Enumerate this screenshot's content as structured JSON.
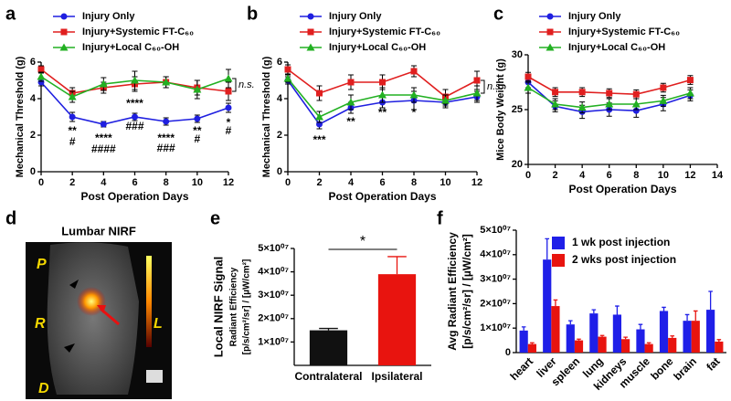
{
  "panel_labels": [
    "a",
    "b",
    "c",
    "d",
    "e",
    "f"
  ],
  "image_panel": {
    "title": "Lumbar NIRF",
    "orientation_labels": [
      "P",
      "R",
      "L",
      "D"
    ]
  },
  "chart_data": [
    {
      "type": "line",
      "x_label": "Post Operation Days",
      "y_label": "Mechanical Threshold (g)",
      "x": [
        0,
        2,
        4,
        6,
        8,
        10,
        12
      ],
      "xlim": [
        0,
        12
      ],
      "xticks": [
        0,
        2,
        4,
        6,
        8,
        10,
        12
      ],
      "ylim": [
        0,
        6
      ],
      "yticks": [
        0,
        2,
        4,
        6
      ],
      "series": [
        {
          "name": "Injury Only",
          "color": "#1f1fe0",
          "marker": "circle",
          "values": [
            4.9,
            3.0,
            2.6,
            3.0,
            2.75,
            2.9,
            3.5
          ],
          "errors": [
            0.2,
            0.25,
            0.15,
            0.2,
            0.2,
            0.2,
            0.25
          ]
        },
        {
          "name": "Injury+Systemic FT-C₆₀",
          "color": "#e01f1f",
          "marker": "square",
          "values": [
            5.6,
            4.3,
            4.6,
            4.8,
            4.9,
            4.6,
            4.4
          ],
          "errors": [
            0.2,
            0.3,
            0.3,
            0.4,
            0.3,
            0.4,
            0.5
          ]
        },
        {
          "name": "Injury+Local C₆₀-OH",
          "color": "#22b022",
          "marker": "triangle",
          "values": [
            5.2,
            4.1,
            4.8,
            5.0,
            4.9,
            4.5,
            5.1
          ],
          "errors": [
            0.25,
            0.3,
            0.35,
            0.5,
            0.3,
            0.5,
            0.5
          ]
        }
      ],
      "annotations": [
        {
          "text": "**",
          "x": 2,
          "y": 2.2
        },
        {
          "text": "#",
          "x": 2,
          "y": 1.6
        },
        {
          "text": "****",
          "x": 4,
          "y": 1.8
        },
        {
          "text": "####",
          "x": 4,
          "y": 1.2
        },
        {
          "text": "****",
          "x": 6,
          "y": 3.7
        },
        {
          "text": "###",
          "x": 6,
          "y": 2.45
        },
        {
          "text": "****",
          "x": 8,
          "y": 1.8
        },
        {
          "text": "###",
          "x": 8,
          "y": 1.25
        },
        {
          "text": "**",
          "x": 10,
          "y": 2.2
        },
        {
          "text": "#",
          "x": 10,
          "y": 1.75
        },
        {
          "text": "*",
          "x": 12,
          "y": 2.65
        },
        {
          "text": "#",
          "x": 12,
          "y": 2.2
        }
      ],
      "bracket_label": "n.s."
    },
    {
      "type": "line",
      "x_label": "Post Operation Days",
      "y_label": "Mechanical Threshold (g)",
      "x": [
        0,
        2,
        4,
        6,
        8,
        10,
        12
      ],
      "xlim": [
        0,
        12
      ],
      "xticks": [
        0,
        2,
        4,
        6,
        8,
        10,
        12
      ],
      "ylim": [
        0,
        6
      ],
      "yticks": [
        0,
        2,
        4,
        6
      ],
      "series": [
        {
          "name": "Injury Only",
          "color": "#1f1fe0",
          "marker": "circle",
          "values": [
            5.0,
            2.6,
            3.5,
            3.8,
            3.9,
            3.8,
            4.1
          ],
          "errors": [
            0.2,
            0.25,
            0.3,
            0.3,
            0.5,
            0.3,
            0.3
          ]
        },
        {
          "name": "Injury+Systemic FT-C₆₀",
          "color": "#e01f1f",
          "marker": "square",
          "values": [
            5.6,
            4.3,
            4.9,
            4.9,
            5.5,
            4.1,
            5.0
          ],
          "errors": [
            0.25,
            0.4,
            0.4,
            0.4,
            0.3,
            0.4,
            0.5
          ]
        },
        {
          "name": "Injury+Local C₆₀-OH",
          "color": "#22b022",
          "marker": "triangle",
          "values": [
            5.1,
            3.0,
            3.8,
            4.2,
            4.2,
            3.9,
            4.3
          ],
          "errors": [
            0.2,
            0.3,
            0.4,
            0.4,
            0.4,
            0.3,
            0.4
          ]
        }
      ],
      "annotations": [
        {
          "text": "***",
          "x": 2,
          "y": 1.7
        },
        {
          "text": "**",
          "x": 4,
          "y": 2.7
        },
        {
          "text": "**",
          "x": 6,
          "y": 3.2
        },
        {
          "text": "*",
          "x": 8,
          "y": 3.2
        }
      ],
      "bracket_label": "n.s."
    },
    {
      "type": "line",
      "x_label": "Post Operation Days",
      "y_label": "Mice Body Weight (g)",
      "x": [
        0,
        2,
        4,
        6,
        8,
        10,
        12
      ],
      "xlim": [
        0,
        14
      ],
      "xticks": [
        0,
        2,
        4,
        6,
        8,
        10,
        12,
        14
      ],
      "ylim": [
        20,
        30
      ],
      "yticks": [
        20,
        25,
        30
      ],
      "series": [
        {
          "name": "Injury Only",
          "color": "#1f1fe0",
          "marker": "circle",
          "values": [
            27.5,
            25.3,
            24.8,
            25.0,
            24.9,
            25.5,
            26.3
          ],
          "errors": [
            0.5,
            0.5,
            0.6,
            0.6,
            0.6,
            0.6,
            0.5
          ]
        },
        {
          "name": "Injury+Systemic FT-C₆₀",
          "color": "#e01f1f",
          "marker": "square",
          "values": [
            28.0,
            26.6,
            26.6,
            26.5,
            26.4,
            27.0,
            27.7
          ],
          "errors": [
            0.4,
            0.4,
            0.4,
            0.4,
            0.4,
            0.4,
            0.4
          ]
        },
        {
          "name": "Injury+Local C₆₀-OH",
          "color": "#22b022",
          "marker": "triangle",
          "values": [
            27.0,
            25.5,
            25.2,
            25.5,
            25.5,
            25.8,
            26.5
          ],
          "errors": [
            0.5,
            0.5,
            0.5,
            0.5,
            0.5,
            0.5,
            0.5
          ]
        }
      ]
    },
    {
      "type": "bar",
      "y_label": "Local NIRF Signal",
      "y_sublabel": [
        "Radiant Efficiency",
        "[p/s/cm²/sr] / [µW/cm²]"
      ],
      "categories": [
        "Contralateral",
        "Ipsilateral"
      ],
      "values": [
        15000000,
        39000000
      ],
      "errors": [
        800000,
        7500000
      ],
      "colors": [
        "#111111",
        "#e8140f"
      ],
      "ylim": [
        0,
        50000000
      ],
      "yticks": [
        {
          "value": 10000000,
          "label": "1×10⁰⁷"
        },
        {
          "value": 20000000,
          "label": "2×10⁰⁷"
        },
        {
          "value": 30000000,
          "label": "3×10⁰⁷"
        },
        {
          "value": 40000000,
          "label": "4×10⁰⁷"
        },
        {
          "value": 50000000,
          "label": "5×10⁰⁷"
        }
      ],
      "significance": "*"
    },
    {
      "type": "bar",
      "y_label": "Avg Radiant Efficiency",
      "y_sublabel": [
        "[p/s/cm²/sr] / [µW/cm²]"
      ],
      "categories": [
        "heart",
        "liver",
        "spleen",
        "lung",
        "kidneys",
        "muscle",
        "bone",
        "brain",
        "fat"
      ],
      "series": [
        {
          "name": "1 wk post injection",
          "color": "#1f1fe8",
          "values": [
            9000000,
            38000000,
            11500000,
            16000000,
            15500000,
            9500000,
            17000000,
            13000000,
            17500000
          ],
          "errors": [
            1500000,
            8500000,
            1500000,
            1500000,
            3500000,
            2000000,
            1500000,
            2500000,
            7500000
          ]
        },
        {
          "name": "2 wks post injection",
          "color": "#e8140f",
          "values": [
            3500000,
            19000000,
            5000000,
            6500000,
            5500000,
            3500000,
            6000000,
            13000000,
            4500000
          ],
          "errors": [
            500000,
            2500000,
            500000,
            500000,
            800000,
            500000,
            800000,
            4000000,
            800000
          ]
        }
      ],
      "ylim": [
        0,
        50000000
      ],
      "yticks": [
        0,
        {
          "value": 10000000,
          "label": "1×10⁰⁷"
        },
        {
          "value": 20000000,
          "label": "2×10⁰⁷"
        },
        {
          "value": 30000000,
          "label": "3×10⁰⁷"
        },
        {
          "value": 40000000,
          "label": "4×10⁰⁷"
        },
        {
          "value": 50000000,
          "label": "5×10⁰⁷"
        }
      ]
    }
  ]
}
